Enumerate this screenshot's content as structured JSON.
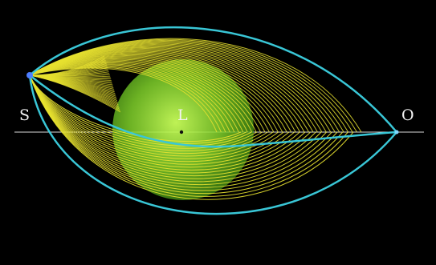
{
  "labels": {
    "source": "S",
    "lens": "L",
    "observer": "O"
  },
  "colors": {
    "background": "#000000",
    "rays": "#e8e230",
    "envelope": "#39c6d6",
    "lens_glow_center": "#c9ff5a",
    "lens_glow_edge": "#3d8c12",
    "axis": "#d8d8d8",
    "source_dot": "#4d7dff",
    "observer_dot": "#7fd8ff"
  },
  "icons": {
    "source": "source-dot-icon",
    "lens": "lens-point-icon",
    "observer": "observer-dot-icon"
  }
}
